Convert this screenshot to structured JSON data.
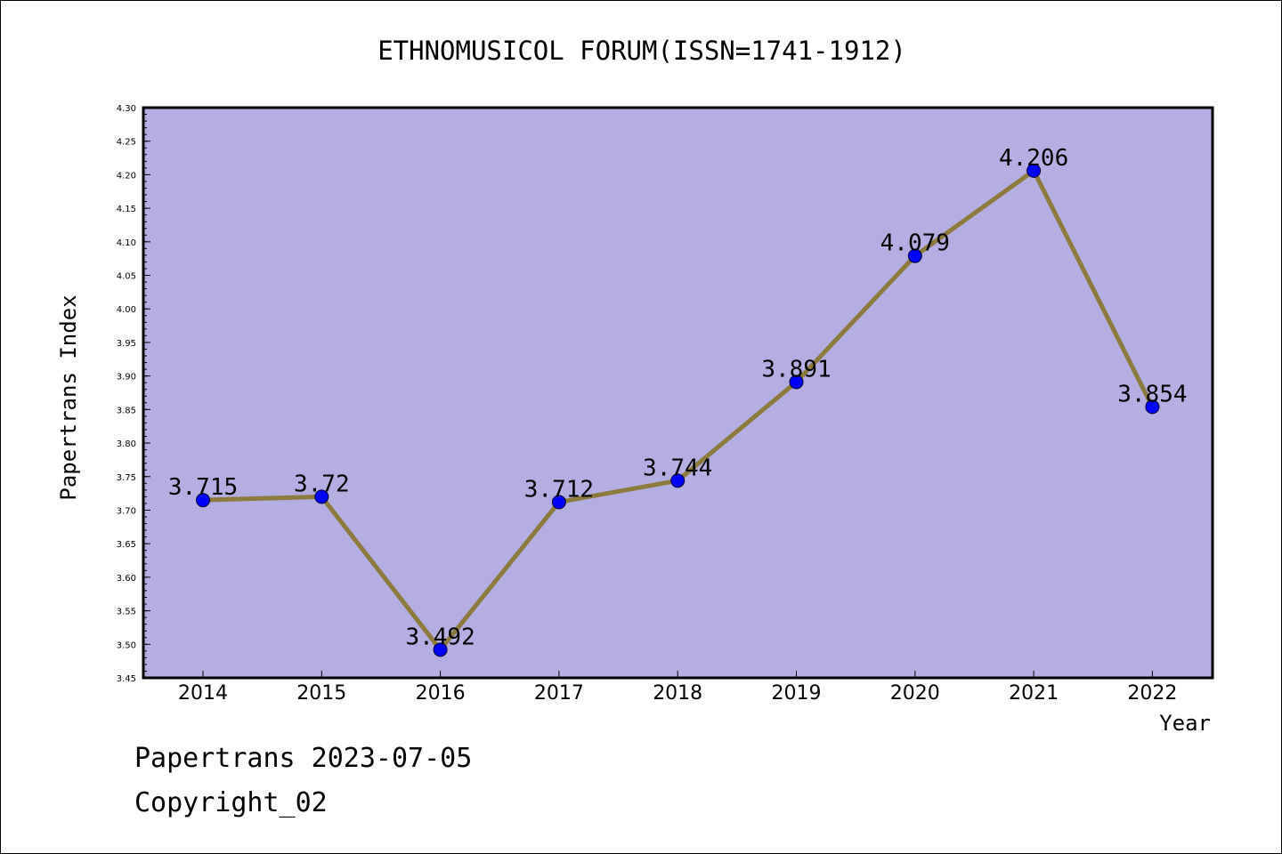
{
  "chart_data": {
    "type": "line",
    "title": "ETHNOMUSICOL FORUM(ISSN=1741-1912)",
    "xlabel": "Year",
    "ylabel": "Papertrans Index",
    "categories": [
      "2014",
      "2015",
      "2016",
      "2017",
      "2018",
      "2019",
      "2020",
      "2021",
      "2022"
    ],
    "values": [
      3.715,
      3.72,
      3.492,
      3.712,
      3.744,
      3.891,
      4.079,
      4.206,
      3.854
    ],
    "data_labels": [
      "3.715",
      "3.72",
      "3.492",
      "3.712",
      "3.744",
      "3.891",
      "4.079",
      "4.206",
      "3.854"
    ],
    "ylim": [
      3.45,
      4.3
    ],
    "yticks": [
      "3.45",
      "3.50",
      "3.55",
      "3.60",
      "3.65",
      "3.70",
      "3.75",
      "3.80",
      "3.85",
      "3.90",
      "3.95",
      "4.00",
      "4.05",
      "4.10",
      "4.15",
      "4.20",
      "4.25",
      "4.30"
    ],
    "grid": false,
    "legend": "none",
    "colors": {
      "plot_background": "#b4aee2",
      "line": "#8c7b3c",
      "marker": "#0000ff"
    }
  },
  "footer": {
    "date_text": "Papertrans 2023-07-05",
    "copyright_text": "Copyright_02"
  }
}
